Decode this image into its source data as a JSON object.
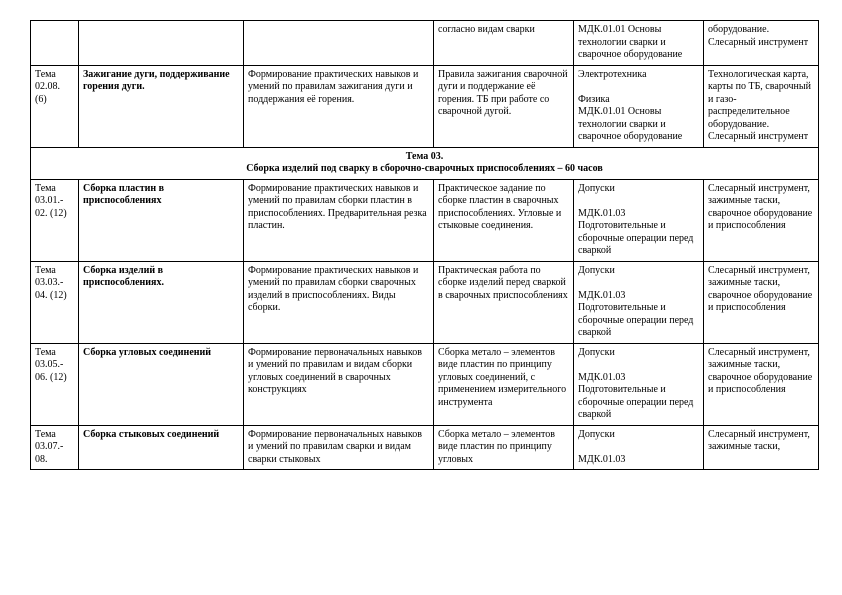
{
  "rows": [
    {
      "c1": "",
      "c2": "",
      "c3": "",
      "c4": "согласно видам сварки",
      "c5": "МДК.01.01   Основы технологии сварки и сварочное оборудование",
      "c6": "оборудование. Слесарный инструмент"
    },
    {
      "c1": "Тема 02.08. (6)",
      "c2": "Зажигание дуги, поддерживание горения дуги.",
      "c3": "Формирование практических навыков и умений по правилам зажигания дуги и поддержания её горения.",
      "c4": "Правила зажигания сварочной дуги и поддержание её горения. ТБ при работе со сварочной дугой.",
      "c5": "Электротехника\n\nФизика\nМДК.01.01   Основы технологии сварки и сварочное оборудование",
      "c6": "Технологическая карта, карты по ТБ, сварочный и газо-распределительное оборудование. Слесарный инструмент"
    }
  ],
  "section": {
    "line1": "Тема 03.",
    "line2": "Сборка изделий под сварку в сборочно-сварочных приспособлениях – 60 часов"
  },
  "rows2": [
    {
      "c1": "Тема 03.01.- 02. (12)",
      "c2": "Сборка  пластин в приспособлениях",
      "c3": "Формирование практических навыков и умений по правилам сборки пластин в приспособлениях. Предварительная резка пластин.",
      "c4": "Практическое задание по сборке пластин в сварочных приспособлениях. Угловые и стыковые соединения.",
      "c5": "Допуски\n\nМДК.01.03 Подготовительные и сборочные операции перед сваркой",
      "c6": "Слесарный инструмент, зажимные таски, сварочное оборудование и приспособления"
    },
    {
      "c1": "Тема 03.03.- 04. (12)",
      "c2": "Сборка изделий  в приспособлениях.",
      "c3": "Формирование практических навыков и умений по правилам сборки сварочных изделий в приспособлениях. Виды сборки.",
      "c4": "Практическая работа по сборке изделий перед сваркой в сварочных приспособлениях",
      "c5": "Допуски\n\nМДК.01.03 Подготовительные и сборочные операции перед сваркой",
      "c6": "Слесарный инструмент, зажимные таски, сварочное оборудование и приспособления"
    },
    {
      "c1": "Тема 03.05.- 06. (12)",
      "c2": "Сборка угловых соединений",
      "c3": "Формирование первоначальных навыков и умений по правилам и видам сборки угловых соединений в сварочных конструкциях",
      "c4": "Сборка метало – элементов виде пластин по принципу угловых соединений, с применением измерительного инструмента",
      "c5": "Допуски\n\nМДК.01.03 Подготовительные и сборочные операции перед сваркой",
      "c6": "Слесарный инструмент, зажимные таски, сварочное оборудование и приспособления"
    },
    {
      "c1": "Тема 03.07.- 08.",
      "c2": "Сборка стыковых соединений",
      "c3": "Формирование первоначальных навыков и умений по правилам сварки и видам сварки стыковых",
      "c4": "Сборка метало – элементов виде пластин по принципу угловых",
      "c5": "Допуски\n\nМДК.01.03",
      "c6": "Слесарный инструмент, зажимные таски,"
    }
  ]
}
